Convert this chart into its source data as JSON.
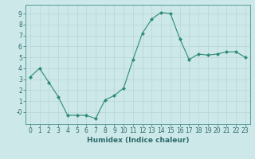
{
  "x": [
    0,
    1,
    2,
    3,
    4,
    5,
    6,
    7,
    8,
    9,
    10,
    11,
    12,
    13,
    14,
    15,
    16,
    17,
    18,
    19,
    20,
    21,
    22,
    23
  ],
  "y": [
    3.2,
    4.0,
    2.7,
    1.4,
    -0.3,
    -0.3,
    -0.3,
    -0.6,
    1.1,
    1.5,
    2.2,
    4.8,
    7.2,
    8.5,
    9.1,
    9.0,
    6.7,
    4.8,
    5.3,
    5.2,
    5.3,
    5.5,
    5.5,
    5.0
  ],
  "xlabel": "Humidex (Indice chaleur)",
  "xlim": [
    -0.5,
    23.5
  ],
  "ylim": [
    -1.1,
    9.8
  ],
  "yticks": [
    0,
    1,
    2,
    3,
    4,
    5,
    6,
    7,
    8,
    9
  ],
  "ytick_labels": [
    "-0",
    "1",
    "2",
    "3",
    "4",
    "5",
    "6",
    "7",
    "8",
    "9"
  ],
  "xticks": [
    0,
    1,
    2,
    3,
    4,
    5,
    6,
    7,
    8,
    9,
    10,
    11,
    12,
    13,
    14,
    15,
    16,
    17,
    18,
    19,
    20,
    21,
    22,
    23
  ],
  "line_color": "#2e8b74",
  "marker_color": "#2e8b74",
  "bg_color": "#cce8e8",
  "grid_color": "#b8d4d4",
  "title_fontsize": 6,
  "label_fontsize": 6.5,
  "tick_fontsize": 5.5
}
